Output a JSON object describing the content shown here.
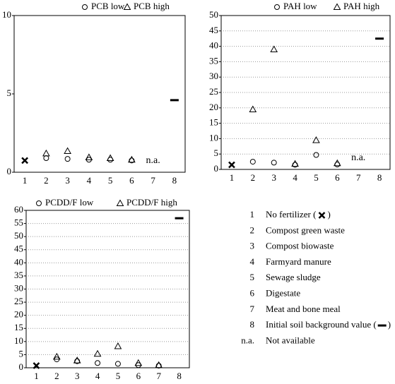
{
  "chart_data": [
    {
      "type": "dot",
      "categories": [
        "1",
        "2",
        "3",
        "4",
        "5",
        "6",
        "7",
        "8"
      ],
      "ylim": [
        0,
        10
      ],
      "yticks": [
        0,
        5,
        10
      ],
      "grid": false,
      "series": [
        {
          "name": "PCB low",
          "marker": "circle",
          "color": "#000000",
          "values": [
            null,
            0.9,
            0.85,
            0.8,
            0.8,
            0.75,
            null,
            null
          ]
        },
        {
          "name": "PCB high",
          "marker": "triangle",
          "color": "#000000",
          "values": [
            null,
            1.2,
            1.35,
            0.95,
            0.9,
            0.8,
            null,
            null
          ]
        },
        {
          "marker": "x",
          "color": "#000000",
          "values": [
            0.75,
            null,
            null,
            null,
            null,
            null,
            null,
            null
          ]
        },
        {
          "marker": "dash",
          "color": "#000000",
          "values": [
            null,
            null,
            null,
            null,
            null,
            null,
            null,
            4.6
          ]
        }
      ],
      "annotations": [
        {
          "text": "n.a.",
          "category": "7"
        }
      ]
    },
    {
      "type": "dot",
      "categories": [
        "1",
        "2",
        "3",
        "4",
        "5",
        "6",
        "7",
        "8"
      ],
      "ylim": [
        0,
        50
      ],
      "yticks": [
        0,
        5,
        10,
        15,
        20,
        25,
        30,
        35,
        40,
        45,
        50
      ],
      "grid": true,
      "series": [
        {
          "name": "PAH low",
          "marker": "circle",
          "color": "#000000",
          "values": [
            null,
            2.5,
            2.2,
            1.5,
            4.7,
            1.6,
            null,
            null
          ]
        },
        {
          "name": "PAH high",
          "marker": "triangle",
          "color": "#000000",
          "values": [
            null,
            19.5,
            39,
            1.8,
            9.5,
            2,
            null,
            null
          ]
        },
        {
          "marker": "x",
          "color": "#000000",
          "values": [
            1.5,
            null,
            null,
            null,
            null,
            null,
            null,
            null
          ]
        },
        {
          "marker": "dash",
          "color": "#000000",
          "values": [
            null,
            null,
            null,
            null,
            null,
            null,
            null,
            42.5
          ]
        }
      ],
      "annotations": [
        {
          "text": "n.a.",
          "category": "7"
        }
      ]
    },
    {
      "type": "dot",
      "categories": [
        "1",
        "2",
        "3",
        "4",
        "5",
        "6",
        "7",
        "8"
      ],
      "ylim": [
        0,
        60
      ],
      "yticks": [
        0,
        5,
        10,
        15,
        20,
        25,
        30,
        35,
        40,
        45,
        50,
        55,
        60
      ],
      "grid": true,
      "series": [
        {
          "name": "PCDD/F low",
          "marker": "circle",
          "color": "#000000",
          "values": [
            null,
            3.2,
            2.5,
            1.8,
            1.5,
            1.0,
            0.8,
            null
          ]
        },
        {
          "name": "PCDD/F high",
          "marker": "triangle",
          "color": "#000000",
          "values": [
            null,
            4.2,
            2.8,
            5.3,
            8.2,
            1.8,
            1.0,
            null
          ]
        },
        {
          "marker": "x",
          "color": "#000000",
          "values": [
            0.8,
            null,
            null,
            null,
            null,
            null,
            null,
            null
          ]
        },
        {
          "marker": "dash",
          "color": "#000000",
          "values": [
            null,
            null,
            null,
            null,
            null,
            null,
            null,
            57
          ]
        }
      ],
      "annotations": []
    }
  ],
  "key": {
    "items": [
      {
        "code": "1",
        "label": "No fertilizer (",
        "symbol": "x",
        "suffix": ")"
      },
      {
        "code": "2",
        "label": "Compost green waste"
      },
      {
        "code": "3",
        "label": "Compost biowaste"
      },
      {
        "code": "4",
        "label": "Farmyard manure"
      },
      {
        "code": "5",
        "label": "Sewage sludge"
      },
      {
        "code": "6",
        "label": "Digestate"
      },
      {
        "code": "7",
        "label": "Meat and bone meal"
      },
      {
        "code": "8",
        "label": "Initial soil background value (",
        "symbol": "dash",
        "suffix": ")"
      },
      {
        "code": "n.a.",
        "label": "Not available"
      }
    ]
  }
}
